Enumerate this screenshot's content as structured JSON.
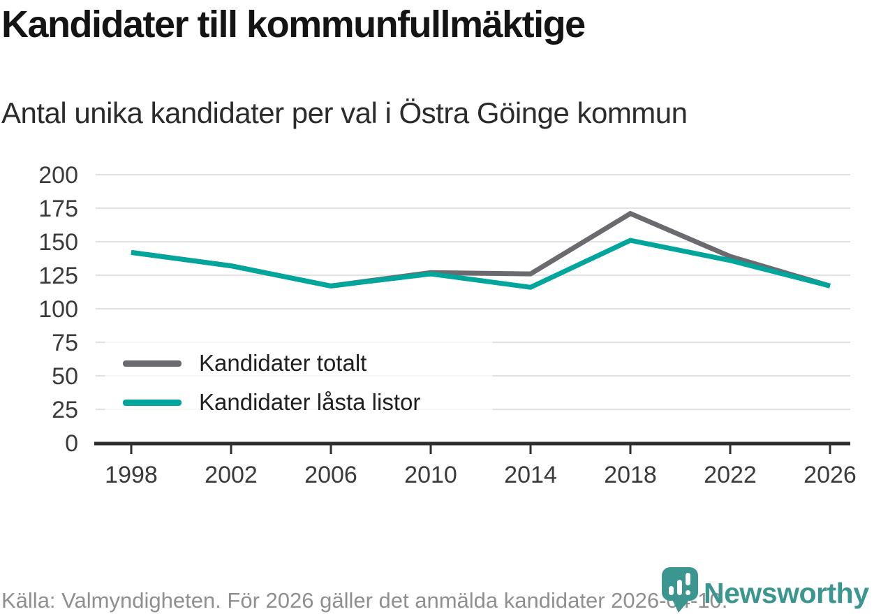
{
  "header": {
    "title": "Kandidater till kommunfullmäktige",
    "subtitle": "Antal unika kandidater per val i Östra Göinge kommun"
  },
  "chart_data": {
    "type": "line",
    "title": "Kandidater till kommunfullmäktige",
    "subtitle": "Antal unika kandidater per val i Östra Göinge kommun",
    "categories": [
      "1998",
      "2002",
      "2006",
      "2010",
      "2014",
      "2018",
      "2022",
      "2026"
    ],
    "series": [
      {
        "name": "Kandidater totalt",
        "color": "#6a6a6f",
        "values": [
          142,
          132,
          117,
          127,
          126,
          171,
          139,
          117
        ]
      },
      {
        "name": "Kandidater låsta listor",
        "color": "#00a69b",
        "values": [
          142,
          132,
          117,
          126,
          116,
          151,
          136,
          117
        ]
      }
    ],
    "ylim": [
      0,
      200
    ],
    "yticks": [
      0,
      25,
      50,
      75,
      100,
      125,
      150,
      175,
      200
    ],
    "grid": true,
    "legend_position": "inside-bottom-left",
    "xlabel": "",
    "ylabel": ""
  },
  "footer": {
    "source_text": "Källa: Valmyndigheten. För 2026 gäller det anmälda kandidater 2026-04-10.",
    "brand_name": "Newsworthy"
  },
  "colors": {
    "series_gray": "#6a6a6f",
    "accent_teal": "#00a69b",
    "logo_teal": "#3a968f",
    "grid": "#e2e2e2",
    "axis": "#2e2e2e",
    "footer_text": "#8f8f8f"
  }
}
